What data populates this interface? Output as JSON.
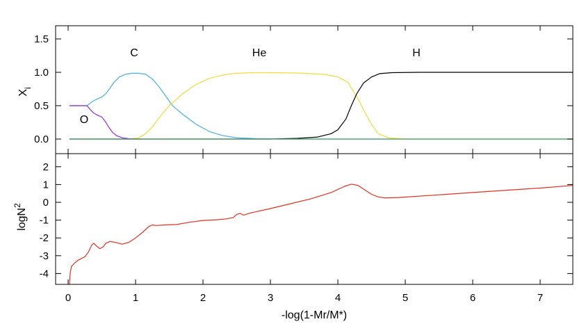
{
  "chart_data": [
    {
      "type": "line",
      "ylabel_main": "X",
      "ylabel_sub": "i",
      "xlim": [
        0,
        7.5
      ],
      "ylim": [
        -0.2,
        1.7
      ],
      "yticks": [
        "0.0",
        "0.5",
        "1.0",
        "1.5"
      ],
      "ytick_values": [
        0.0,
        0.5,
        1.0,
        1.5
      ],
      "grid": false,
      "annotations": [
        {
          "text": "C",
          "x": 0.97,
          "y": 1.3
        },
        {
          "text": "He",
          "x": 2.83,
          "y": 1.3
        },
        {
          "text": "H",
          "x": 5.2,
          "y": 1.3
        },
        {
          "text": "O",
          "x": 0.24,
          "y": 0.3
        }
      ],
      "series": [
        {
          "color": "#4aaee0",
          "points": [
            [
              0.02,
              0.5
            ],
            [
              0.28,
              0.5
            ],
            [
              0.37,
              0.57
            ],
            [
              0.43,
              0.6
            ],
            [
              0.5,
              0.63
            ],
            [
              0.56,
              0.68
            ],
            [
              0.62,
              0.76
            ],
            [
              0.68,
              0.85
            ],
            [
              0.76,
              0.93
            ],
            [
              0.85,
              0.97
            ],
            [
              0.95,
              0.985
            ],
            [
              1.05,
              0.985
            ],
            [
              1.15,
              0.97
            ],
            [
              1.25,
              0.9
            ],
            [
              1.35,
              0.78
            ],
            [
              1.45,
              0.64
            ],
            [
              1.55,
              0.5
            ],
            [
              1.7,
              0.37
            ],
            [
              1.9,
              0.22
            ],
            [
              2.1,
              0.11
            ],
            [
              2.3,
              0.05
            ],
            [
              2.5,
              0.02
            ],
            [
              2.8,
              0.005
            ],
            [
              3.2,
              0.0
            ],
            [
              7.5,
              0.0
            ]
          ]
        },
        {
          "color": "#f0dc3c",
          "points": [
            [
              0.75,
              0.0
            ],
            [
              0.9,
              0.0
            ],
            [
              1.05,
              0.02
            ],
            [
              1.15,
              0.08
            ],
            [
              1.25,
              0.18
            ],
            [
              1.35,
              0.32
            ],
            [
              1.5,
              0.5
            ],
            [
              1.7,
              0.68
            ],
            [
              1.9,
              0.82
            ],
            [
              2.1,
              0.91
            ],
            [
              2.3,
              0.96
            ],
            [
              2.5,
              0.985
            ],
            [
              2.75,
              0.995
            ],
            [
              3.0,
              0.995
            ],
            [
              3.4,
              0.99
            ],
            [
              3.8,
              0.97
            ],
            [
              4.0,
              0.93
            ],
            [
              4.15,
              0.85
            ],
            [
              4.3,
              0.6
            ],
            [
              4.4,
              0.4
            ],
            [
              4.5,
              0.22
            ],
            [
              4.6,
              0.08
            ],
            [
              4.75,
              0.02
            ],
            [
              5.0,
              0.0
            ],
            [
              7.5,
              0.0
            ]
          ]
        },
        {
          "color": "#000000",
          "points": [
            [
              0.02,
              0.0
            ],
            [
              2.5,
              0.0
            ],
            [
              3.0,
              0.0
            ],
            [
              3.4,
              0.01
            ],
            [
              3.7,
              0.03
            ],
            [
              3.9,
              0.08
            ],
            [
              4.0,
              0.14
            ],
            [
              4.12,
              0.3
            ],
            [
              4.2,
              0.5
            ],
            [
              4.28,
              0.68
            ],
            [
              4.38,
              0.84
            ],
            [
              4.5,
              0.93
            ],
            [
              4.62,
              0.98
            ],
            [
              4.8,
              0.995
            ],
            [
              5.2,
              1.0
            ],
            [
              7.5,
              1.0
            ]
          ]
        },
        {
          "color": "#8a2be2",
          "points": [
            [
              0.02,
              0.5
            ],
            [
              0.28,
              0.5
            ],
            [
              0.33,
              0.44
            ],
            [
              0.38,
              0.39
            ],
            [
              0.43,
              0.36
            ],
            [
              0.5,
              0.33
            ],
            [
              0.56,
              0.25
            ],
            [
              0.6,
              0.18
            ],
            [
              0.66,
              0.1
            ],
            [
              0.72,
              0.05
            ],
            [
              0.8,
              0.02
            ],
            [
              0.9,
              0.005
            ],
            [
              1.0,
              0.0
            ],
            [
              1.1,
              0.0
            ]
          ]
        },
        {
          "color": "#4d9e6b",
          "points": [
            [
              0.02,
              0.0
            ],
            [
              7.5,
              0.0
            ]
          ]
        }
      ]
    },
    {
      "type": "line",
      "ylabel_main": "logN",
      "ylabel_sup": "2",
      "xlabel": "-log(1-Mr/M*)",
      "xlim": [
        0,
        7.5
      ],
      "ylim": [
        -4.6,
        2.6
      ],
      "xticks": [
        "0",
        "1",
        "2",
        "3",
        "4",
        "5",
        "6",
        "7"
      ],
      "xtick_values": [
        0,
        1,
        2,
        3,
        4,
        5,
        6,
        7
      ],
      "yticks": [
        "2",
        "1",
        "0",
        "-1",
        "-2",
        "-3",
        "-4"
      ],
      "ytick_values": [
        2,
        1,
        0,
        -1,
        -2,
        -3,
        -4
      ],
      "grid": false,
      "series": [
        {
          "color": "#e03020",
          "points": [
            [
              0.02,
              -4.6
            ],
            [
              0.03,
              -4.0
            ],
            [
              0.05,
              -3.6
            ],
            [
              0.1,
              -3.4
            ],
            [
              0.15,
              -3.25
            ],
            [
              0.25,
              -3.05
            ],
            [
              0.3,
              -2.8
            ],
            [
              0.35,
              -2.4
            ],
            [
              0.38,
              -2.3
            ],
            [
              0.42,
              -2.45
            ],
            [
              0.47,
              -2.6
            ],
            [
              0.52,
              -2.5
            ],
            [
              0.56,
              -2.3
            ],
            [
              0.62,
              -2.2
            ],
            [
              0.7,
              -2.25
            ],
            [
              0.8,
              -2.35
            ],
            [
              0.9,
              -2.25
            ],
            [
              1.0,
              -2.0
            ],
            [
              1.1,
              -1.7
            ],
            [
              1.2,
              -1.35
            ],
            [
              1.25,
              -1.27
            ],
            [
              1.3,
              -1.3
            ],
            [
              1.45,
              -1.27
            ],
            [
              1.6,
              -1.25
            ],
            [
              1.8,
              -1.12
            ],
            [
              2.0,
              -1.02
            ],
            [
              2.2,
              -0.98
            ],
            [
              2.35,
              -0.93
            ],
            [
              2.45,
              -0.85
            ],
            [
              2.5,
              -0.68
            ],
            [
              2.55,
              -0.62
            ],
            [
              2.6,
              -0.72
            ],
            [
              2.7,
              -0.6
            ],
            [
              3.0,
              -0.35
            ],
            [
              3.3,
              -0.08
            ],
            [
              3.6,
              0.2
            ],
            [
              3.9,
              0.55
            ],
            [
              4.1,
              0.9
            ],
            [
              4.2,
              1.02
            ],
            [
              4.3,
              0.95
            ],
            [
              4.4,
              0.7
            ],
            [
              4.5,
              0.45
            ],
            [
              4.6,
              0.3
            ],
            [
              4.7,
              0.25
            ],
            [
              4.9,
              0.27
            ],
            [
              5.5,
              0.42
            ],
            [
              6.0,
              0.55
            ],
            [
              6.5,
              0.68
            ],
            [
              7.0,
              0.8
            ],
            [
              7.5,
              0.95
            ]
          ]
        }
      ]
    }
  ]
}
